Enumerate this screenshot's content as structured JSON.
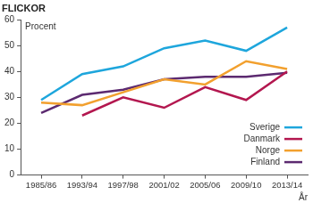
{
  "chart_data": {
    "type": "line",
    "title": "FLICKOR",
    "y_label": "Procent",
    "x_label": "År",
    "categories": [
      "1985/86",
      "1993/94",
      "1997/98",
      "2001/02",
      "2005/06",
      "2009/10",
      "2013/14"
    ],
    "series": [
      {
        "name": "Sverige",
        "color": "#1ea6dc",
        "values": [
          29,
          39,
          42,
          49,
          52,
          48,
          57
        ]
      },
      {
        "name": "Danmark",
        "color": "#b3174f",
        "values": [
          null,
          23,
          30,
          26,
          34,
          29,
          40
        ]
      },
      {
        "name": "Norge",
        "color": "#f2a02e",
        "values": [
          28,
          27,
          32,
          37,
          35,
          44,
          41
        ]
      },
      {
        "name": "Finland",
        "color": "#5c2a70",
        "values": [
          24,
          31,
          33,
          37,
          38,
          38,
          39.5
        ]
      }
    ],
    "ylim": [
      0,
      60
    ],
    "yticks": [
      0,
      10,
      20,
      30,
      40,
      50,
      60
    ],
    "grid": false,
    "legend": "lower right"
  }
}
